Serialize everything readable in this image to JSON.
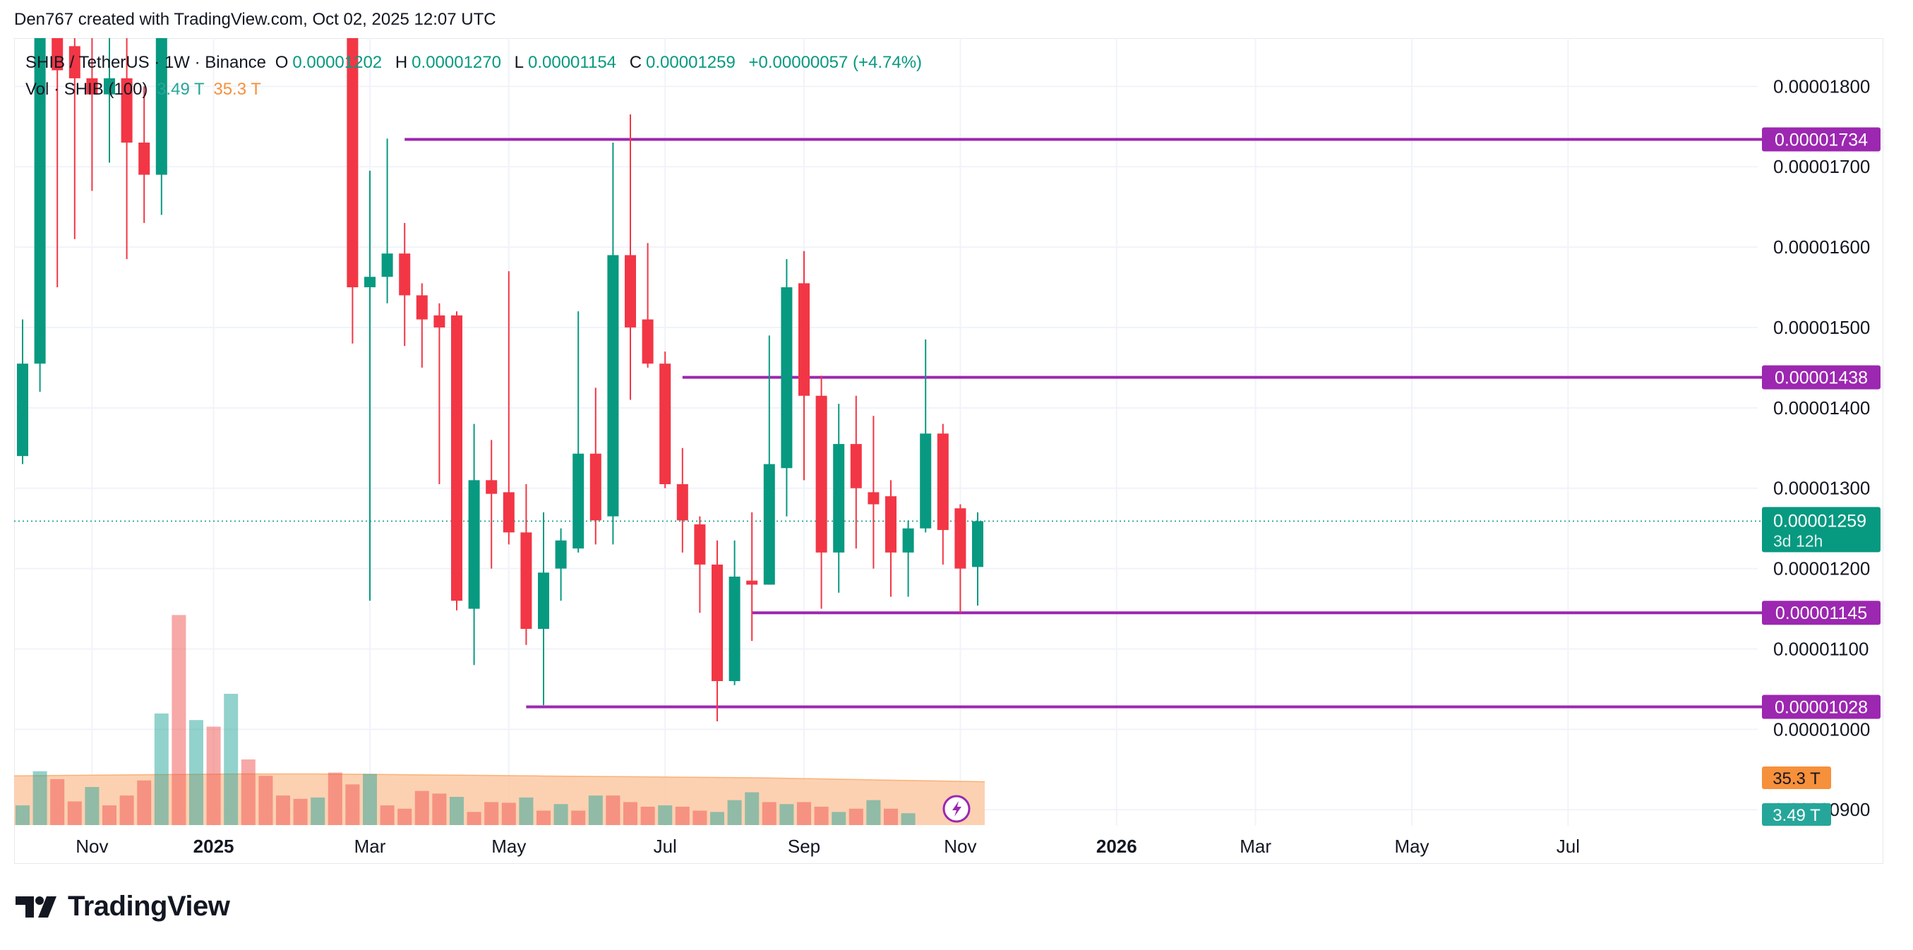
{
  "header": {
    "credit": "Den767 created with TradingView.com, Oct 02, 2025 12:07 UTC"
  },
  "legend": {
    "symbol": "SHIB / TetherUS · 1W · Binance",
    "o_label": "O",
    "o_value": "0.00001202",
    "h_label": "H",
    "h_value": "0.00001270",
    "l_label": "L",
    "l_value": "0.00001154",
    "c_label": "C",
    "c_value": "0.00001259",
    "change": "+0.00000057 (+4.74%)",
    "volume_label": "Vol · SHIB (100)",
    "volume_value": "3.49 T",
    "volume_ma": "35.3 T"
  },
  "footer": {
    "brand": "TradingView"
  },
  "colors": {
    "up": "#089981",
    "down": "#f23645",
    "level": "#9c27b0",
    "volume_ma_fill": "#fcc9a4",
    "volume_ma_line": "#f7903b",
    "current_price": "#089981",
    "grid": "#f0f3fa"
  },
  "chart_data": {
    "type": "candlestick",
    "symbol": "SHIB / TetherUS",
    "interval": "1W",
    "exchange": "Binance",
    "ylim": [
      8.8e-06,
      1.86e-05
    ],
    "y_ticks": [
      "0.00001800",
      "0.00001700",
      "0.00001600",
      "0.00001500",
      "0.00001400",
      "0.00001300",
      "0.00001200",
      "0.00001100",
      "0.00001000",
      "0.00000900"
    ],
    "y_tick_values": [
      1.8e-05,
      1.7e-05,
      1.6e-05,
      1.5e-05,
      1.4e-05,
      1.3e-05,
      1.2e-05,
      1.1e-05,
      1e-05,
      9e-06
    ],
    "x_ticks": [
      "Nov",
      "2025",
      "Mar",
      "May",
      "Jul",
      "Sep",
      "Nov",
      "2026",
      "Mar",
      "May",
      "Jul"
    ],
    "x_tick_weeks": [
      4,
      11,
      20,
      28,
      37,
      45,
      54,
      63,
      71,
      80,
      89
    ],
    "x_tick_bold": [
      false,
      true,
      false,
      false,
      false,
      false,
      false,
      true,
      false,
      false,
      false
    ],
    "levels": [
      {
        "label": "0.00001734",
        "value": 1.734e-05,
        "from_week": 22
      },
      {
        "label": "0.00001438",
        "value": 1.438e-05,
        "from_week": 38
      },
      {
        "label": "0.00001145",
        "value": 1.145e-05,
        "from_week": 42
      },
      {
        "label": "0.00001028",
        "value": 1.028e-05,
        "from_week": 29
      }
    ],
    "current_price": {
      "label": "0.00001259",
      "value": 1.259e-05,
      "countdown": "3d 12h"
    },
    "volume_badges": [
      {
        "label": "35.3 T",
        "kind": "ma"
      },
      {
        "label": "3.49 T",
        "kind": "vol"
      }
    ],
    "candles": [
      {
        "w": 0,
        "o": 1.34e-05,
        "h": 1.51e-05,
        "l": 1.33e-05,
        "c": 1.455e-05
      },
      {
        "w": 1,
        "o": 1.455e-05,
        "h": 1.9e-05,
        "l": 1.42e-05,
        "c": 1.9e-05
      },
      {
        "w": 2,
        "o": 1.9e-05,
        "h": 1.9e-05,
        "l": 1.55e-05,
        "c": 1.82e-05
      },
      {
        "w": 3,
        "o": 1.85e-05,
        "h": 1.9e-05,
        "l": 1.61e-05,
        "c": 1.81e-05
      },
      {
        "w": 4,
        "o": 1.81e-05,
        "h": 1.9e-05,
        "l": 1.67e-05,
        "c": 1.79e-05
      },
      {
        "w": 5,
        "o": 1.79e-05,
        "h": 1.9e-05,
        "l": 1.705e-05,
        "c": 1.81e-05
      },
      {
        "w": 6,
        "o": 1.81e-05,
        "h": 1.9e-05,
        "l": 1.585e-05,
        "c": 1.73e-05
      },
      {
        "w": 7,
        "o": 1.73e-05,
        "h": 1.8e-05,
        "l": 1.63e-05,
        "c": 1.69e-05
      },
      {
        "w": 8,
        "o": 1.69e-05,
        "h": 1.9e-05,
        "l": 1.64e-05,
        "c": 1.88e-05
      },
      {
        "w": 19,
        "o": 1.88e-05,
        "h": 1.9e-05,
        "l": 1.48e-05,
        "c": 1.55e-05
      },
      {
        "w": 20,
        "o": 1.55e-05,
        "h": 1.695e-05,
        "l": 1.16e-05,
        "c": 1.563e-05
      },
      {
        "w": 21,
        "o": 1.563e-05,
        "h": 1.735e-05,
        "l": 1.53e-05,
        "c": 1.592e-05
      },
      {
        "w": 22,
        "o": 1.592e-05,
        "h": 1.63e-05,
        "l": 1.477e-05,
        "c": 1.54e-05
      },
      {
        "w": 23,
        "o": 1.54e-05,
        "h": 1.555e-05,
        "l": 1.45e-05,
        "c": 1.51e-05
      },
      {
        "w": 24,
        "o": 1.515e-05,
        "h": 1.53e-05,
        "l": 1.305e-05,
        "c": 1.5e-05
      },
      {
        "w": 25,
        "o": 1.515e-05,
        "h": 1.52e-05,
        "l": 1.148e-05,
        "c": 1.16e-05
      },
      {
        "w": 26,
        "o": 1.15e-05,
        "h": 1.38e-05,
        "l": 1.08e-05,
        "c": 1.31e-05
      },
      {
        "w": 27,
        "o": 1.31e-05,
        "h": 1.36e-05,
        "l": 1.2e-05,
        "c": 1.293e-05
      },
      {
        "w": 28,
        "o": 1.295e-05,
        "h": 1.57e-05,
        "l": 1.23e-05,
        "c": 1.245e-05
      },
      {
        "w": 29,
        "o": 1.245e-05,
        "h": 1.305e-05,
        "l": 1.105e-05,
        "c": 1.125e-05
      },
      {
        "w": 30,
        "o": 1.125e-05,
        "h": 1.27e-05,
        "l": 1.03e-05,
        "c": 1.195e-05
      },
      {
        "w": 31,
        "o": 1.2e-05,
        "h": 1.25e-05,
        "l": 1.16e-05,
        "c": 1.235e-05
      },
      {
        "w": 32,
        "o": 1.225e-05,
        "h": 1.52e-05,
        "l": 1.22e-05,
        "c": 1.343e-05
      },
      {
        "w": 33,
        "o": 1.343e-05,
        "h": 1.425e-05,
        "l": 1.23e-05,
        "c": 1.26e-05
      },
      {
        "w": 34,
        "o": 1.265e-05,
        "h": 1.73e-05,
        "l": 1.23e-05,
        "c": 1.59e-05
      },
      {
        "w": 35,
        "o": 1.59e-05,
        "h": 1.765e-05,
        "l": 1.41e-05,
        "c": 1.5e-05
      },
      {
        "w": 36,
        "o": 1.51e-05,
        "h": 1.605e-05,
        "l": 1.45e-05,
        "c": 1.455e-05
      },
      {
        "w": 37,
        "o": 1.455e-05,
        "h": 1.47e-05,
        "l": 1.3e-05,
        "c": 1.305e-05
      },
      {
        "w": 38,
        "o": 1.305e-05,
        "h": 1.35e-05,
        "l": 1.22e-05,
        "c": 1.26e-05
      },
      {
        "w": 39,
        "o": 1.255e-05,
        "h": 1.265e-05,
        "l": 1.145e-05,
        "c": 1.205e-05
      },
      {
        "w": 40,
        "o": 1.205e-05,
        "h": 1.235e-05,
        "l": 1.01e-05,
        "c": 1.06e-05
      },
      {
        "w": 41,
        "o": 1.06e-05,
        "h": 1.235e-05,
        "l": 1.055e-05,
        "c": 1.19e-05
      },
      {
        "w": 42,
        "o": 1.185e-05,
        "h": 1.27e-05,
        "l": 1.11e-05,
        "c": 1.18e-05
      },
      {
        "w": 43,
        "o": 1.18e-05,
        "h": 1.49e-05,
        "l": 1.18e-05,
        "c": 1.33e-05
      },
      {
        "w": 44,
        "o": 1.325e-05,
        "h": 1.585e-05,
        "l": 1.265e-05,
        "c": 1.55e-05
      },
      {
        "w": 45,
        "o": 1.555e-05,
        "h": 1.595e-05,
        "l": 1.31e-05,
        "c": 1.415e-05
      },
      {
        "w": 46,
        "o": 1.415e-05,
        "h": 1.44e-05,
        "l": 1.15e-05,
        "c": 1.22e-05
      },
      {
        "w": 47,
        "o": 1.22e-05,
        "h": 1.405e-05,
        "l": 1.17e-05,
        "c": 1.355e-05
      },
      {
        "w": 48,
        "o": 1.355e-05,
        "h": 1.415e-05,
        "l": 1.225e-05,
        "c": 1.3e-05
      },
      {
        "w": 49,
        "o": 1.295e-05,
        "h": 1.39e-05,
        "l": 1.2e-05,
        "c": 1.28e-05
      },
      {
        "w": 50,
        "o": 1.29e-05,
        "h": 1.31e-05,
        "l": 1.165e-05,
        "c": 1.22e-05
      },
      {
        "w": 51,
        "o": 1.22e-05,
        "h": 1.26e-05,
        "l": 1.165e-05,
        "c": 1.25e-05
      },
      {
        "w": 52,
        "o": 1.25e-05,
        "h": 1.485e-05,
        "l": 1.245e-05,
        "c": 1.368e-05
      },
      {
        "w": 53,
        "o": 1.368e-05,
        "h": 1.38e-05,
        "l": 1.205e-05,
        "c": 1.248e-05
      },
      {
        "w": 54,
        "o": 1.275e-05,
        "h": 1.28e-05,
        "l": 1.145e-05,
        "c": 1.2e-05
      },
      {
        "w": 55,
        "o": 1.202e-05,
        "h": 1.27e-05,
        "l": 1.154e-05,
        "c": 1.259e-05
      }
    ],
    "volumes": [
      {
        "w": 0,
        "v": 0.3,
        "up": true
      },
      {
        "w": 1,
        "v": 0.82,
        "up": true
      },
      {
        "w": 2,
        "v": 0.7,
        "up": false
      },
      {
        "w": 3,
        "v": 0.36,
        "up": false
      },
      {
        "w": 4,
        "v": 0.58,
        "up": true
      },
      {
        "w": 5,
        "v": 0.3,
        "up": false
      },
      {
        "w": 6,
        "v": 0.45,
        "up": false
      },
      {
        "w": 7,
        "v": 0.68,
        "up": false
      },
      {
        "w": 8,
        "v": 1.7,
        "up": true
      },
      {
        "w": 9,
        "v": 3.2,
        "up": false
      },
      {
        "w": 10,
        "v": 1.6,
        "up": true
      },
      {
        "w": 11,
        "v": 1.5,
        "up": false
      },
      {
        "w": 12,
        "v": 2.0,
        "up": true
      },
      {
        "w": 13,
        "v": 1.0,
        "up": false
      },
      {
        "w": 14,
        "v": 0.75,
        "up": false
      },
      {
        "w": 15,
        "v": 0.45,
        "up": false
      },
      {
        "w": 16,
        "v": 0.4,
        "up": false
      },
      {
        "w": 17,
        "v": 0.42,
        "up": true
      },
      {
        "w": 18,
        "v": 0.8,
        "up": false
      },
      {
        "w": 19,
        "v": 0.62,
        "up": false
      },
      {
        "w": 20,
        "v": 0.78,
        "up": true
      },
      {
        "w": 21,
        "v": 0.3,
        "up": false
      },
      {
        "w": 22,
        "v": 0.25,
        "up": false
      },
      {
        "w": 23,
        "v": 0.52,
        "up": false
      },
      {
        "w": 24,
        "v": 0.48,
        "up": false
      },
      {
        "w": 25,
        "v": 0.43,
        "up": true
      },
      {
        "w": 26,
        "v": 0.2,
        "up": false
      },
      {
        "w": 27,
        "v": 0.35,
        "up": false
      },
      {
        "w": 28,
        "v": 0.34,
        "up": false
      },
      {
        "w": 29,
        "v": 0.42,
        "up": true
      },
      {
        "w": 30,
        "v": 0.22,
        "up": false
      },
      {
        "w": 31,
        "v": 0.32,
        "up": true
      },
      {
        "w": 32,
        "v": 0.22,
        "up": false
      },
      {
        "w": 33,
        "v": 0.45,
        "up": true
      },
      {
        "w": 34,
        "v": 0.45,
        "up": false
      },
      {
        "w": 35,
        "v": 0.35,
        "up": false
      },
      {
        "w": 36,
        "v": 0.28,
        "up": false
      },
      {
        "w": 37,
        "v": 0.3,
        "up": true
      },
      {
        "w": 38,
        "v": 0.28,
        "up": false
      },
      {
        "w": 39,
        "v": 0.22,
        "up": false
      },
      {
        "w": 40,
        "v": 0.2,
        "up": true
      },
      {
        "w": 41,
        "v": 0.38,
        "up": true
      },
      {
        "w": 42,
        "v": 0.5,
        "up": true
      },
      {
        "w": 43,
        "v": 0.35,
        "up": false
      },
      {
        "w": 44,
        "v": 0.32,
        "up": true
      },
      {
        "w": 45,
        "v": 0.35,
        "up": false
      },
      {
        "w": 46,
        "v": 0.28,
        "up": false
      },
      {
        "w": 47,
        "v": 0.2,
        "up": true
      },
      {
        "w": 48,
        "v": 0.25,
        "up": false
      },
      {
        "w": 49,
        "v": 0.38,
        "up": true
      },
      {
        "w": 50,
        "v": 0.25,
        "up": false
      },
      {
        "w": 51,
        "v": 0.18,
        "up": true
      }
    ],
    "volume_ma": [
      0.75,
      0.76,
      0.77,
      0.78,
      0.78,
      0.77,
      0.76,
      0.75,
      0.74,
      0.73,
      0.72,
      0.7,
      0.68,
      0.66
    ]
  }
}
